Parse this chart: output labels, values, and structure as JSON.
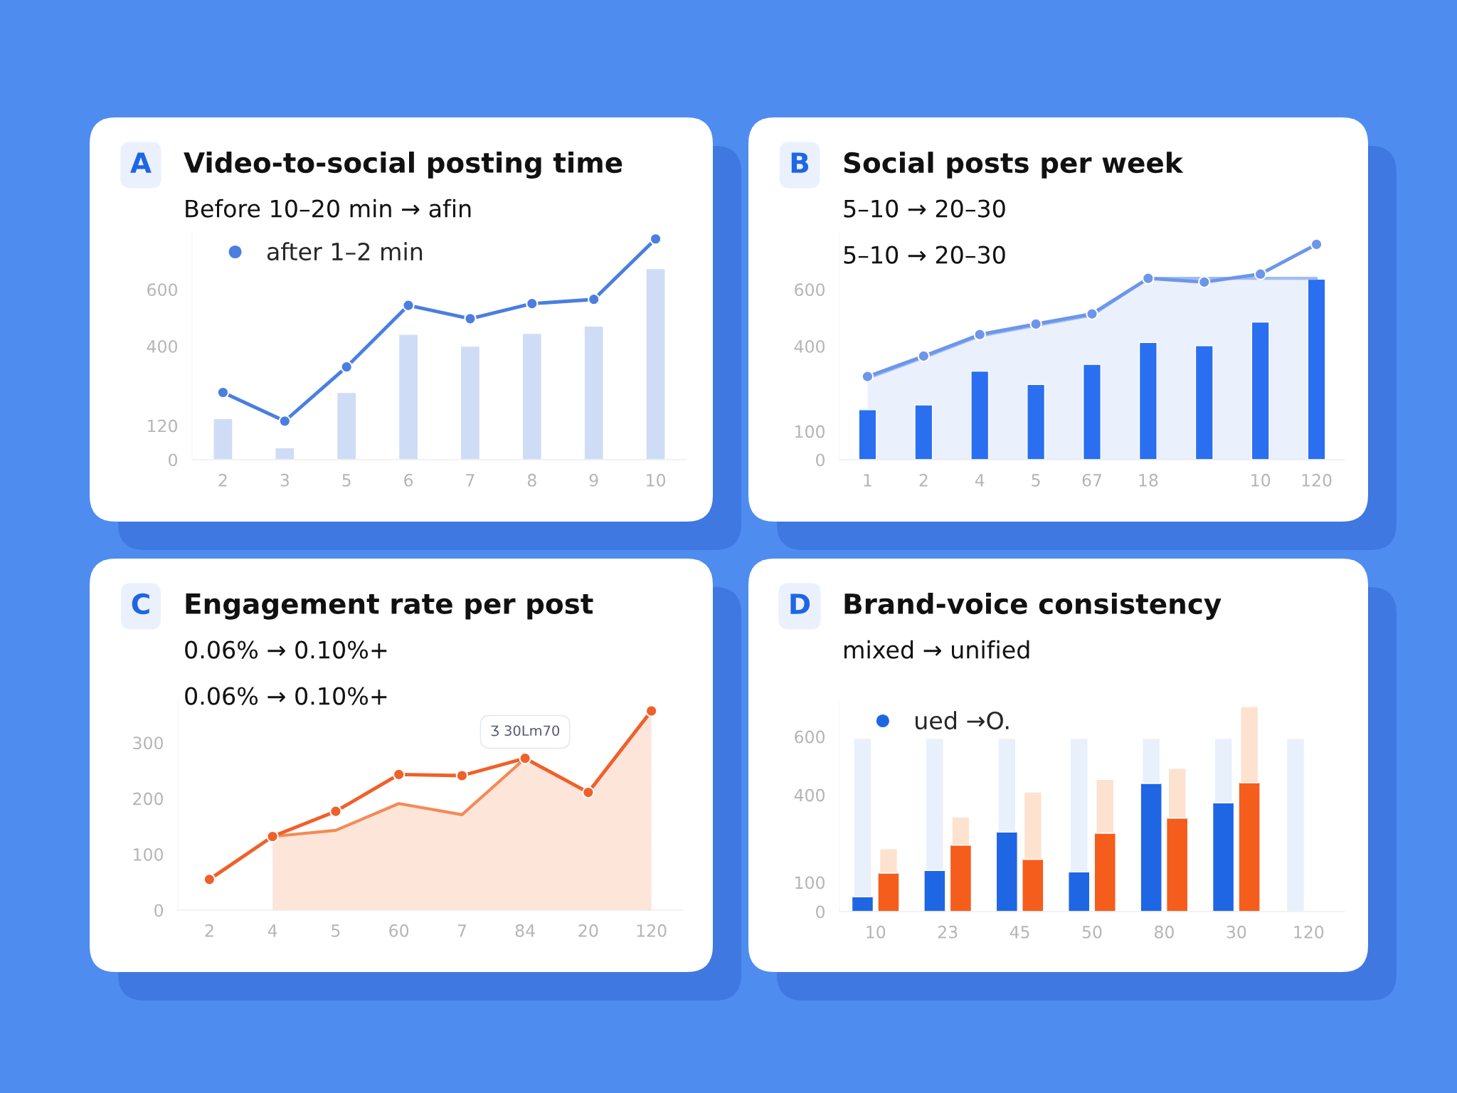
{
  "chart_data": [
    {
      "type": "bar",
      "title": "Video-to-social posting time",
      "subtitle": "Before 10–20 min → afin",
      "annotations": [
        "A"
      ],
      "categories": [
        "2",
        "3",
        "5",
        "6",
        "7",
        "8",
        "9",
        "10"
      ],
      "series": [
        {
          "type": "bar",
          "color": "#cfdcf6",
          "values": [
            145,
            42,
            237,
            442,
            400,
            445,
            471,
            673
          ]
        },
        {
          "type": "line",
          "name": "after 1–2 min",
          "color": "#4a7ee0",
          "values": [
            237,
            136,
            327,
            544,
            497,
            550,
            565,
            778
          ]
        }
      ],
      "ylim": [
        0,
        800
      ],
      "yticks": [
        0,
        120,
        400,
        600
      ],
      "marker": "circle",
      "legend": "top left"
    },
    {
      "type": "bar",
      "title": "Social posts per week",
      "subtitle": "5–10 → 20–30",
      "annotations": [
        "B",
        "5–10 → 20–30"
      ],
      "categories": [
        "1",
        "2",
        "4",
        "5",
        "67",
        "18",
        null,
        "10",
        "120"
      ],
      "series": [
        {
          "type": "bar",
          "color": "#2a6ff0",
          "values": [
            176,
            193,
            312,
            265,
            336,
            413,
            402,
            485,
            636
          ]
        },
        {
          "type": "area",
          "color": "#9fbcf2",
          "marker": "none",
          "values": [
            287,
            360,
            436,
            473,
            509,
            639,
            639,
            639,
            639
          ]
        },
        {
          "type": "line",
          "color": "#6d96ea",
          "values": [
            293,
            365,
            441,
            478,
            514,
            639,
            626,
            654,
            759
          ]
        }
      ],
      "ylim": [
        0,
        800
      ],
      "yticks": [
        0,
        100,
        400,
        600
      ],
      "marker": "circle"
    },
    {
      "type": "line",
      "title": "Engagement rate per post",
      "subtitle": "0.06% → 0.10%+",
      "annotations": [
        "C",
        "0.06% → 0.10%+",
        {
          "text": "Ʒ 30Lm70",
          "x": "84",
          "y": 272
        }
      ],
      "categories": [
        "2",
        "4",
        "5",
        "60",
        "7",
        "84",
        "20",
        "120"
      ],
      "series": [
        {
          "type": "area",
          "color": "#f58a55",
          "marker": "none",
          "values": [
            null,
            132,
            143,
            191,
            171,
            272,
            211,
            357
          ]
        },
        {
          "type": "line",
          "color": "#f0602a",
          "values": [
            55,
            132,
            177,
            243,
            241,
            272,
            211,
            357
          ]
        }
      ],
      "ylim": [
        0,
        380
      ],
      "yticks": [
        0,
        100,
        200,
        300
      ],
      "marker": "circle"
    },
    {
      "type": "bar",
      "title": "Brand-voice consistency",
      "subtitle": "mixed → unified",
      "annotations": [
        "D"
      ],
      "categories": [
        "10",
        "23",
        "45",
        "50",
        "80",
        "30",
        "120"
      ],
      "series": [
        {
          "name": "ued →O.",
          "color": "#1f66e5",
          "values": [
            51,
            141,
            273,
            136,
            440,
            373,
            null
          ]
        },
        {
          "color": "#e8f0fc",
          "values": [
            543,
            453,
            321,
            458,
            154,
            221,
            594
          ],
          "base": [
            51,
            141,
            273,
            136,
            440,
            373,
            0
          ]
        },
        {
          "color": "#f45d1c",
          "values": [
            132,
            228,
            179,
            269,
            321,
            442,
            null
          ]
        },
        {
          "color": "#fde2d0",
          "values": [
            83,
            96,
            231,
            184,
            170,
            261,
            null
          ],
          "base": [
            132,
            228,
            179,
            269,
            321,
            442,
            null
          ]
        }
      ],
      "ylim": [
        0,
        720
      ],
      "yticks": [
        0,
        100,
        400,
        600
      ],
      "legend": "top left"
    }
  ]
}
